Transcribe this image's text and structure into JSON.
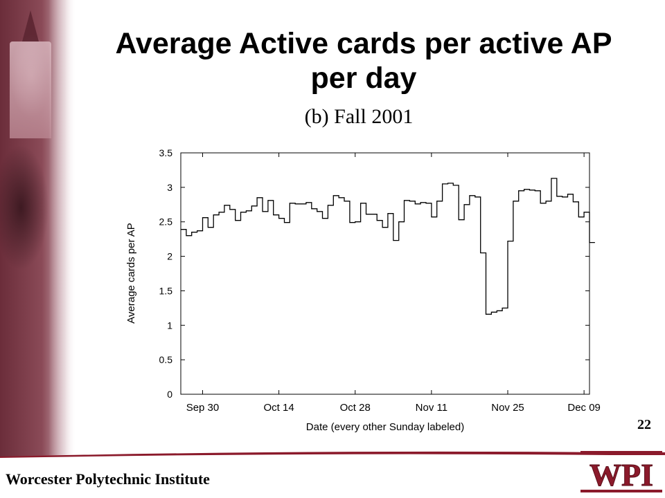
{
  "slide": {
    "title": "Average Active cards per active AP per day",
    "footer": "Worcester Polytechnic Institute",
    "page_number": "22",
    "logo_text": "WPI",
    "colors": {
      "maroon": "#8b1a2b",
      "line": "#000000"
    }
  },
  "chart_data": {
    "type": "line",
    "subtitle": "(b)  Fall 2001",
    "xlabel": "Date (every other Sunday labeled)",
    "ylabel": "Average cards per AP",
    "ylim": [
      0,
      3.5
    ],
    "yticks": [
      "0",
      "0.5",
      "1",
      "1.5",
      "2",
      "2.5",
      "3",
      "3.5"
    ],
    "xticks": [
      {
        "label": "Sep 30",
        "day": 4
      },
      {
        "label": "Oct 14",
        "day": 18
      },
      {
        "label": "Oct 28",
        "day": 32
      },
      {
        "label": "Nov 11",
        "day": 46
      },
      {
        "label": "Nov 25",
        "day": 60
      },
      {
        "label": "Dec 09",
        "day": 74
      }
    ],
    "xlim": [
      0,
      75
    ],
    "step": true,
    "series": [
      {
        "values": [
          2.39,
          2.3,
          2.35,
          2.37,
          2.56,
          2.42,
          2.6,
          2.64,
          2.74,
          2.68,
          2.52,
          2.64,
          2.66,
          2.73,
          2.85,
          2.65,
          2.81,
          2.6,
          2.55,
          2.49,
          2.77,
          2.76,
          2.76,
          2.78,
          2.69,
          2.65,
          2.55,
          2.74,
          2.88,
          2.85,
          2.8,
          2.49,
          2.5,
          2.77,
          2.61,
          2.61,
          2.52,
          2.42,
          2.62,
          2.23,
          2.5,
          2.81,
          2.8,
          2.76,
          2.78,
          2.77,
          2.57,
          2.8,
          3.05,
          3.06,
          3.03,
          2.53,
          2.75,
          2.88,
          2.86,
          2.05,
          1.16,
          1.19,
          1.21,
          1.25,
          2.22,
          2.8,
          2.95,
          2.97,
          2.96,
          2.95,
          2.77,
          2.8,
          3.13,
          2.87,
          2.86,
          2.9,
          2.79,
          2.57,
          2.64,
          2.2
        ]
      }
    ]
  }
}
